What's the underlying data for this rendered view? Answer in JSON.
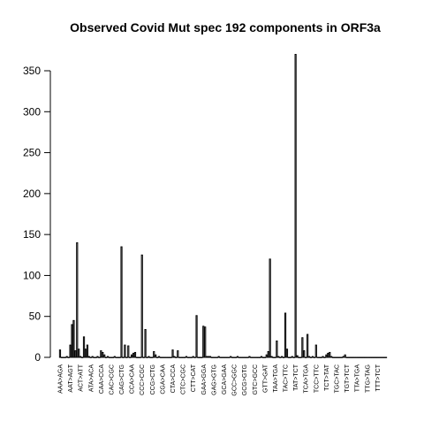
{
  "chart_data": {
    "type": "bar",
    "title": "Observed Covid Mut spec 192 components in ORF3a",
    "xlabel": "",
    "ylabel": "",
    "ylim": [
      0,
      380
    ],
    "yticks": [
      0,
      50,
      100,
      150,
      200,
      250,
      300,
      350
    ],
    "grid": false,
    "tick_labels": [
      "AAA>AGA",
      "AAT>AGT",
      "ACT>ATT",
      "ATA>ACA",
      "CAA>CCA",
      "CAC>CGC",
      "CAG>CTG",
      "CCA>CAA",
      "CCC>CGC",
      "CCG>CTG",
      "CGA>CAA",
      "CTA>CCA",
      "CTC>CGC",
      "CTT>CAT",
      "GAA>GGA",
      "GAG>GTG",
      "GCA>GAA",
      "GCC>GGC",
      "GCG>GTG",
      "GTC>GCC",
      "GTT>GAT",
      "TAA>TGA",
      "TAC>TTC",
      "TAT>TCT",
      "TCA>TGA",
      "TCC>TTC",
      "TCT>TAT",
      "TGC>TAC",
      "TGT>TCT",
      "TTA>TGA",
      "TTG>TAG",
      "TTT>TCT"
    ],
    "n_bars": 192,
    "values": [
      9,
      0,
      0,
      0,
      1,
      0,
      15,
      40,
      45,
      8,
      140,
      10,
      1,
      0,
      25,
      10,
      15,
      1,
      0,
      1,
      0,
      0,
      1,
      0,
      8,
      6,
      3,
      0,
      1,
      0,
      0,
      0,
      1,
      0,
      0,
      0,
      135,
      0,
      15,
      0,
      14,
      0,
      3,
      5,
      6,
      0,
      0,
      0,
      125,
      0,
      34,
      0,
      1,
      0,
      0,
      7,
      3,
      0,
      1,
      0,
      0,
      0,
      0,
      0,
      0,
      0,
      9,
      1,
      0,
      8,
      0,
      0,
      0,
      0,
      1,
      0,
      0,
      0,
      1,
      0,
      51,
      0,
      0,
      0,
      38,
      37,
      1,
      1,
      1,
      0,
      0,
      0,
      0,
      1,
      0,
      0,
      0,
      0,
      0,
      0,
      1,
      0,
      0,
      0,
      1,
      0,
      0,
      0,
      0,
      0,
      0,
      1,
      0,
      0,
      0,
      0,
      0,
      0,
      1,
      0,
      0,
      3,
      7,
      120,
      1,
      0,
      0,
      20,
      1,
      0,
      1,
      0,
      54,
      10,
      0,
      0,
      1,
      0,
      370,
      2,
      0,
      0,
      24,
      8,
      0,
      28,
      1,
      0,
      1,
      0,
      15,
      0,
      0,
      0,
      1,
      0,
      3,
      5,
      6,
      1,
      0,
      0,
      0,
      0,
      0,
      0,
      1,
      3,
      0,
      0,
      0,
      0,
      0,
      0,
      0,
      0,
      0,
      0,
      0,
      0,
      0,
      0,
      0,
      0,
      0,
      0,
      0,
      0,
      0,
      0,
      0,
      0
    ]
  }
}
